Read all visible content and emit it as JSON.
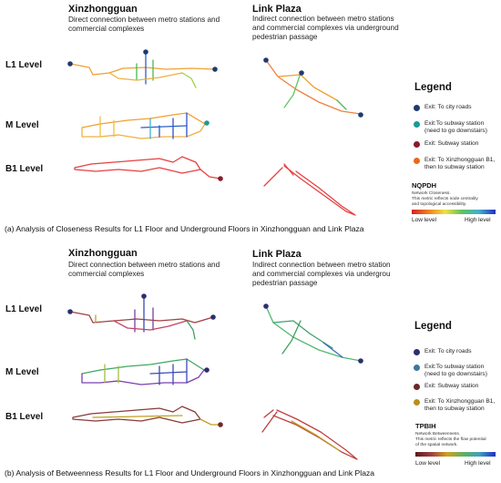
{
  "panel_a": {
    "left_title": "Xinzhongguan",
    "left_desc": [
      "Direct connection between metro stations and",
      "commercial complexes"
    ],
    "right_title": "Link Plaza",
    "right_desc": [
      "Indirect connection between metro stations",
      "and commercial complexes via underground",
      "pedestrian passage"
    ],
    "levels": [
      "L1 Level",
      "M Level",
      "B1 Level"
    ],
    "caption": "(a) Analysis of Closeness Results for L1 Floor and Underground Floors in Xinzhongguan and Link Plaza",
    "legend": {
      "title": "Legend",
      "items": [
        {
          "label": [
            "Exit: To city roads"
          ],
          "color": "#1f3a6e"
        },
        {
          "label": [
            "Exit:To subway station",
            "(need to go downstairs)"
          ],
          "color": "#1a9a9a"
        },
        {
          "label": [
            "Exit: Subway station"
          ],
          "color": "#8b1a2a"
        },
        {
          "label": [
            "Exit: To Xinzhongguan B1,",
            "then to subway station"
          ],
          "color": "#e86a1a"
        }
      ],
      "metric": "NQPDH",
      "metric_desc": [
        "Network Closeness.",
        "This metric reflects node centrality",
        "and topological accessibility."
      ],
      "low": "Low level",
      "high": "High level"
    }
  },
  "panel_b": {
    "left_title": "Xinzhongguan",
    "left_desc": [
      "Direct connection between metro stations and",
      "commercial complexes"
    ],
    "right_title": "Link Plaza",
    "right_desc": [
      "Indirect connection between metro station",
      "and commercial complexes via undergrou",
      "pedestrian passage"
    ],
    "levels": [
      "L1 Level",
      "M Level",
      "B1 Level"
    ],
    "caption": "(b) Analysis of Betweenness Results for L1 Floor and Underground Floors in Xinzhongguan and Link Plaza",
    "legend": {
      "title": "Legend",
      "items": [
        {
          "label": [
            "Exit: To city roads"
          ],
          "color": "#2a2f6e"
        },
        {
          "label": [
            "Exit:To subway station",
            "(need to go downstairs)"
          ],
          "color": "#3a7a9a"
        },
        {
          "label": [
            "Exit: Subway station"
          ],
          "color": "#6a2a2a"
        },
        {
          "label": [
            "Exit: To Xinzhongguan B1,",
            "then to subway station"
          ],
          "color": "#b8901a"
        }
      ],
      "metric": "TPBIH",
      "metric_desc": [
        "Network Betweenness.",
        "This metric reflects the flow potential",
        "of the spatial network."
      ],
      "low": "Low level",
      "high": "High level"
    }
  }
}
